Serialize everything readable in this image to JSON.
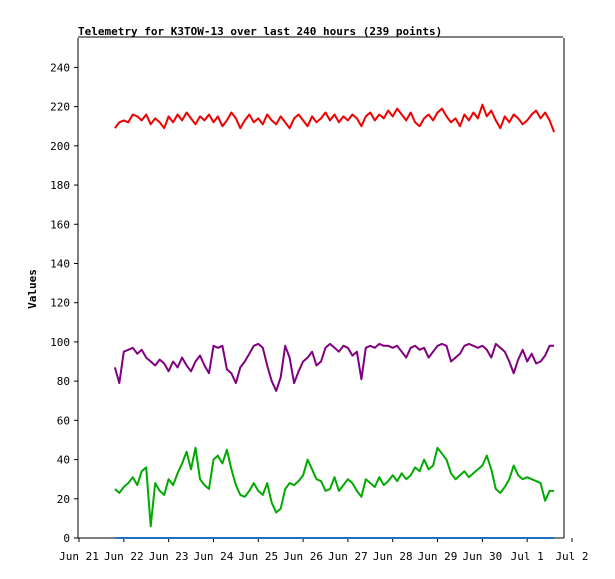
{
  "chart_data": {
    "type": "line",
    "title": "Telemetry for K3TOW-13 over last 240 hours (239 points)",
    "xlabel": "",
    "ylabel": "Values",
    "ylim": [
      0,
      255
    ],
    "y_ticks": [
      0,
      20,
      40,
      60,
      80,
      100,
      120,
      140,
      160,
      180,
      200,
      220,
      240
    ],
    "x_range": [
      0,
      11
    ],
    "x_ticks": [
      {
        "label": "Jun 21",
        "x": 0
      },
      {
        "label": "Jun 22",
        "x": 1
      },
      {
        "label": "Jun 23",
        "x": 2
      },
      {
        "label": "Jun 24",
        "x": 3
      },
      {
        "label": "Jun 25",
        "x": 4
      },
      {
        "label": "Jun 26",
        "x": 5
      },
      {
        "label": "Jun 27",
        "x": 6
      },
      {
        "label": "Jun 28",
        "x": 7
      },
      {
        "label": "Jun 29",
        "x": 8
      },
      {
        "label": "Jun 30",
        "x": 9
      },
      {
        "label": "Jul 1",
        "x": 10
      },
      {
        "label": "Jul 2",
        "x": 11
      }
    ],
    "grid": false,
    "legend": "none",
    "series": [
      {
        "color": "#ee0000",
        "x": [
          0.8,
          0.9,
          1.0,
          1.1,
          1.2,
          1.3,
          1.4,
          1.5,
          1.6,
          1.7,
          1.8,
          1.9,
          2.0,
          2.1,
          2.2,
          2.3,
          2.4,
          2.5,
          2.6,
          2.7,
          2.8,
          2.9,
          3.0,
          3.1,
          3.2,
          3.3,
          3.4,
          3.5,
          3.6,
          3.7,
          3.8,
          3.9,
          4.0,
          4.1,
          4.2,
          4.3,
          4.4,
          4.5,
          4.6,
          4.7,
          4.8,
          4.9,
          5.0,
          5.1,
          5.2,
          5.3,
          5.4,
          5.5,
          5.6,
          5.7,
          5.8,
          5.9,
          6.0,
          6.1,
          6.2,
          6.3,
          6.4,
          6.5,
          6.6,
          6.7,
          6.8,
          6.9,
          7.0,
          7.1,
          7.2,
          7.3,
          7.4,
          7.5,
          7.6,
          7.7,
          7.8,
          7.9,
          8.0,
          8.1,
          8.2,
          8.3,
          8.4,
          8.5,
          8.6,
          8.7,
          8.8,
          8.9,
          9.0,
          9.1,
          9.2,
          9.3,
          9.4,
          9.5,
          9.6,
          9.7,
          9.8,
          9.9,
          10.0,
          10.1,
          10.2,
          10.3,
          10.4,
          10.5,
          10.6
        ],
        "values": [
          209,
          212,
          213,
          212,
          216,
          215,
          213,
          216,
          211,
          214,
          212,
          209,
          215,
          212,
          216,
          213,
          217,
          214,
          211,
          215,
          213,
          216,
          212,
          215,
          210,
          213,
          217,
          214,
          209,
          213,
          216,
          212,
          214,
          211,
          216,
          213,
          211,
          215,
          212,
          209,
          214,
          216,
          213,
          210,
          215,
          212,
          214,
          217,
          213,
          216,
          212,
          215,
          213,
          216,
          214,
          210,
          215,
          217,
          213,
          216,
          214,
          218,
          215,
          219,
          216,
          213,
          217,
          212,
          210,
          214,
          216,
          213,
          217,
          219,
          215,
          212,
          214,
          210,
          216,
          213,
          217,
          214,
          221,
          215,
          218,
          213,
          209,
          215,
          212,
          216,
          214,
          211,
          213,
          216,
          218,
          214,
          217,
          213,
          207
        ]
      },
      {
        "color": "#800080",
        "x": [
          0.8,
          0.9,
          1.0,
          1.1,
          1.2,
          1.3,
          1.4,
          1.5,
          1.6,
          1.7,
          1.8,
          1.9,
          2.0,
          2.1,
          2.2,
          2.3,
          2.4,
          2.5,
          2.6,
          2.7,
          2.8,
          2.9,
          3.0,
          3.1,
          3.2,
          3.3,
          3.4,
          3.5,
          3.6,
          3.7,
          3.8,
          3.9,
          4.0,
          4.1,
          4.2,
          4.3,
          4.4,
          4.5,
          4.6,
          4.7,
          4.8,
          4.9,
          5.0,
          5.1,
          5.2,
          5.3,
          5.4,
          5.5,
          5.6,
          5.7,
          5.8,
          5.9,
          6.0,
          6.1,
          6.2,
          6.3,
          6.4,
          6.5,
          6.6,
          6.7,
          6.8,
          6.9,
          7.0,
          7.1,
          7.2,
          7.3,
          7.4,
          7.5,
          7.6,
          7.7,
          7.8,
          7.9,
          8.0,
          8.1,
          8.2,
          8.3,
          8.4,
          8.5,
          8.6,
          8.7,
          8.8,
          8.9,
          9.0,
          9.1,
          9.2,
          9.3,
          9.4,
          9.5,
          9.6,
          9.7,
          9.8,
          9.9,
          10.0,
          10.1,
          10.2,
          10.3,
          10.4,
          10.5,
          10.6
        ],
        "values": [
          87,
          79,
          95,
          96,
          97,
          94,
          96,
          92,
          90,
          88,
          91,
          89,
          85,
          90,
          87,
          92,
          88,
          85,
          90,
          93,
          88,
          84,
          98,
          97,
          98,
          86,
          84,
          79,
          87,
          90,
          94,
          98,
          99,
          97,
          88,
          80,
          75,
          82,
          98,
          92,
          79,
          85,
          90,
          92,
          95,
          88,
          90,
          97,
          99,
          97,
          95,
          98,
          97,
          93,
          95,
          81,
          97,
          98,
          97,
          99,
          98,
          98,
          97,
          98,
          95,
          92,
          97,
          98,
          96,
          97,
          92,
          95,
          98,
          99,
          98,
          90,
          92,
          94,
          98,
          99,
          98,
          97,
          98,
          96,
          92,
          99,
          97,
          95,
          90,
          84,
          91,
          96,
          90,
          94,
          89,
          90,
          93,
          98,
          98
        ]
      },
      {
        "color": "#00aa00",
        "x": [
          0.8,
          0.9,
          1.0,
          1.1,
          1.2,
          1.3,
          1.4,
          1.5,
          1.6,
          1.7,
          1.8,
          1.9,
          2.0,
          2.1,
          2.2,
          2.3,
          2.4,
          2.5,
          2.6,
          2.7,
          2.8,
          2.9,
          3.0,
          3.1,
          3.2,
          3.3,
          3.4,
          3.5,
          3.6,
          3.7,
          3.8,
          3.9,
          4.0,
          4.1,
          4.2,
          4.3,
          4.4,
          4.5,
          4.6,
          4.7,
          4.8,
          4.9,
          5.0,
          5.1,
          5.2,
          5.3,
          5.4,
          5.5,
          5.6,
          5.7,
          5.8,
          5.9,
          6.0,
          6.1,
          6.2,
          6.3,
          6.4,
          6.5,
          6.6,
          6.7,
          6.8,
          6.9,
          7.0,
          7.1,
          7.2,
          7.3,
          7.4,
          7.5,
          7.6,
          7.7,
          7.8,
          7.9,
          8.0,
          8.1,
          8.2,
          8.3,
          8.4,
          8.5,
          8.6,
          8.7,
          8.8,
          8.9,
          9.0,
          9.1,
          9.2,
          9.3,
          9.4,
          9.5,
          9.6,
          9.7,
          9.8,
          9.9,
          10.0,
          10.1,
          10.2,
          10.3,
          10.4,
          10.5,
          10.6
        ],
        "values": [
          25,
          23,
          26,
          28,
          31,
          27,
          34,
          36,
          6,
          28,
          24,
          22,
          30,
          27,
          33,
          38,
          44,
          35,
          46,
          30,
          27,
          25,
          40,
          42,
          38,
          45,
          35,
          27,
          22,
          21,
          24,
          28,
          24,
          22,
          28,
          18,
          13,
          15,
          25,
          28,
          27,
          29,
          32,
          40,
          35,
          30,
          29,
          24,
          25,
          31,
          24,
          27,
          30,
          28,
          24,
          21,
          30,
          28,
          26,
          31,
          27,
          29,
          32,
          29,
          33,
          30,
          32,
          36,
          34,
          40,
          35,
          37,
          46,
          43,
          40,
          33,
          30,
          32,
          34,
          31,
          33,
          35,
          37,
          42,
          35,
          25,
          23,
          26,
          30,
          37,
          32,
          30,
          31,
          30,
          29,
          28,
          19,
          24,
          24
        ]
      },
      {
        "color": "#1f70c1",
        "x": [
          0.8,
          10.6
        ],
        "values": [
          0,
          0
        ]
      }
    ]
  }
}
